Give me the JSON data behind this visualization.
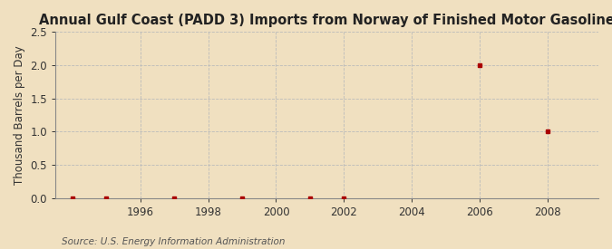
{
  "title": "Annual Gulf Coast (PADD 3) Imports from Norway of Finished Motor Gasoline",
  "ylabel": "Thousand Barrels per Day",
  "source": "Source: U.S. Energy Information Administration",
  "background_color": "#f0e0c0",
  "plot_background_color": "#f0e0c0",
  "x_data": [
    1994,
    1995,
    1997,
    1999,
    2001,
    2002,
    2006,
    2008
  ],
  "y_data": [
    0.0,
    0.0,
    0.0,
    0.0,
    0.0,
    0.0,
    2.0,
    1.0
  ],
  "xlim": [
    1993.5,
    2009.5
  ],
  "ylim": [
    0.0,
    2.5
  ],
  "yticks": [
    0.0,
    0.5,
    1.0,
    1.5,
    2.0,
    2.5
  ],
  "xticks": [
    1996,
    1998,
    2000,
    2002,
    2004,
    2006,
    2008
  ],
  "marker_color": "#aa0000",
  "marker_size": 3.5,
  "grid_color": "#bbbbbb",
  "title_fontsize": 10.5,
  "tick_fontsize": 8.5,
  "ylabel_fontsize": 8.5,
  "source_fontsize": 7.5,
  "spine_color": "#888888"
}
